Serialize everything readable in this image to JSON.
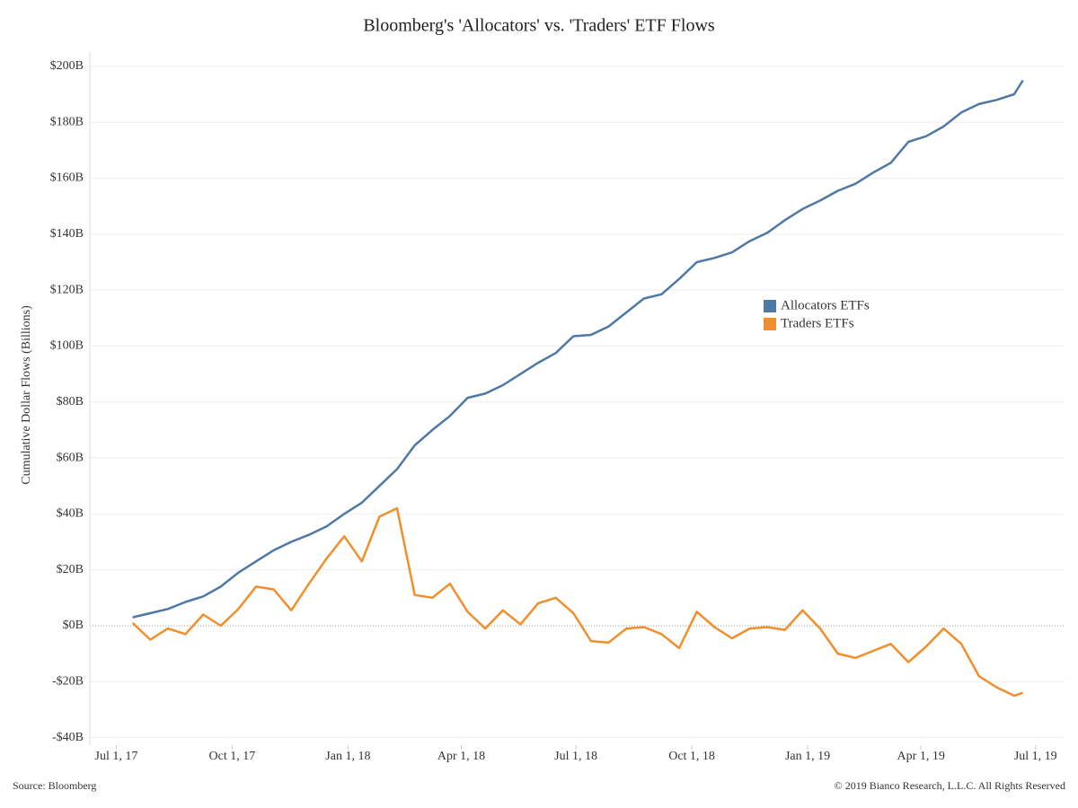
{
  "chart_data": {
    "type": "line",
    "title": "Bloomberg's 'Allocators' vs. 'Traders' ETF Flows",
    "y_label": "Cumulative Dollar Flows (Billions)",
    "source": "Source: Bloomberg",
    "copyright": "© 2019 Bianco Research, L.L.C. All Rights Reserved",
    "x": [
      "2017-07-14",
      "2017-07-28",
      "2017-08-11",
      "2017-08-25",
      "2017-09-08",
      "2017-09-22",
      "2017-10-06",
      "2017-10-20",
      "2017-11-03",
      "2017-11-17",
      "2017-12-01",
      "2017-12-15",
      "2017-12-29",
      "2018-01-12",
      "2018-01-26",
      "2018-02-09",
      "2018-02-23",
      "2018-03-09",
      "2018-03-23",
      "2018-04-06",
      "2018-04-20",
      "2018-05-04",
      "2018-05-18",
      "2018-06-01",
      "2018-06-15",
      "2018-06-29",
      "2018-07-13",
      "2018-07-27",
      "2018-08-10",
      "2018-08-24",
      "2018-09-07",
      "2018-09-21",
      "2018-10-05",
      "2018-10-19",
      "2018-11-02",
      "2018-11-16",
      "2018-11-30",
      "2018-12-14",
      "2018-12-28",
      "2019-01-11",
      "2019-01-25",
      "2019-02-08",
      "2019-02-22",
      "2019-03-08",
      "2019-03-22",
      "2019-04-05",
      "2019-04-19",
      "2019-05-03",
      "2019-05-17",
      "2019-05-31",
      "2019-06-14",
      "2019-06-21"
    ],
    "series": [
      {
        "name": "Allocators ETFs",
        "color": "#4e79a7",
        "values": [
          3,
          4.5,
          6,
          8.5,
          10.5,
          14,
          19,
          23,
          27,
          30,
          32.5,
          35.5,
          40,
          44,
          50,
          56,
          64.5,
          70,
          75,
          81.5,
          83,
          86,
          90,
          94,
          97.5,
          103.5,
          104,
          107,
          112,
          117,
          118.5,
          124,
          130,
          131.5,
          133.5,
          137.5,
          140.5,
          145,
          149,
          152,
          155.5,
          158,
          162,
          165.5,
          173,
          175,
          178.5,
          183.5,
          186.5,
          188,
          190,
          195
        ]
      },
      {
        "name": "Traders ETFs",
        "color": "#f28e2b",
        "values": [
          1,
          -5,
          -1,
          -3,
          4,
          0,
          6,
          14,
          13,
          5.5,
          15,
          24,
          32,
          23,
          39,
          42,
          11,
          10,
          15,
          5,
          -1,
          5.5,
          0.5,
          8,
          10,
          4.5,
          -5.5,
          -6,
          -1,
          -0.5,
          -3,
          -8,
          5,
          -0.5,
          -4.5,
          -1,
          -0.5,
          -1.5,
          5.5,
          -1,
          -10,
          -11.5,
          -9,
          -6.5,
          -13,
          -7.5,
          -1,
          -6.5,
          -18,
          -22,
          -25,
          -24
        ]
      }
    ],
    "xlim": [
      "2017-06-10",
      "2019-07-24"
    ],
    "xticks": [
      {
        "value": "2017-07-01",
        "label": "Jul 1, 17"
      },
      {
        "value": "2017-10-01",
        "label": "Oct 1, 17"
      },
      {
        "value": "2018-01-01",
        "label": "Jan 1, 18"
      },
      {
        "value": "2018-04-01",
        "label": "Apr 1, 18"
      },
      {
        "value": "2018-07-01",
        "label": "Jul 1, 18"
      },
      {
        "value": "2018-10-01",
        "label": "Oct 1, 18"
      },
      {
        "value": "2019-01-01",
        "label": "Jan 1, 19"
      },
      {
        "value": "2019-04-01",
        "label": "Apr 1, 19"
      },
      {
        "value": "2019-07-01",
        "label": "Jul 1, 19"
      }
    ],
    "ylim": [
      -42.7,
      205.1
    ],
    "yticks": [
      {
        "value": -40,
        "label": "-$40B"
      },
      {
        "value": -20,
        "label": "-$20B"
      },
      {
        "value": 0,
        "label": "$0B"
      },
      {
        "value": 20,
        "label": "$20B"
      },
      {
        "value": 40,
        "label": "$40B"
      },
      {
        "value": 60,
        "label": "$60B"
      },
      {
        "value": 80,
        "label": "$80B"
      },
      {
        "value": 100,
        "label": "$100B"
      },
      {
        "value": 120,
        "label": "$120B"
      },
      {
        "value": 140,
        "label": "$140B"
      },
      {
        "value": 160,
        "label": "$160B"
      },
      {
        "value": 180,
        "label": "$180B"
      },
      {
        "value": 200,
        "label": "$200B"
      }
    ],
    "grid": true,
    "legend": "center-right"
  }
}
